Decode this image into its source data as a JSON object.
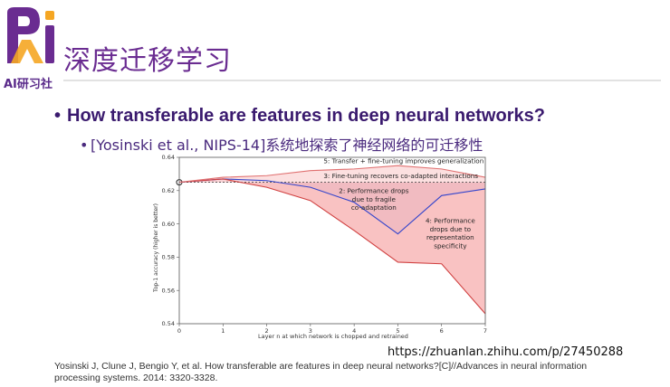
{
  "logo": {
    "text": "AI研习社",
    "accent": "#6a2c91",
    "highlight": "#f5a623"
  },
  "slide": {
    "title": "深度迁移学习",
    "bullet_main": "How transferable are features in deep neural networks?",
    "bullet_sub": "[Yosinski et al., NIPS-14]系统地探索了神经网络的可迁移性"
  },
  "chart_data": {
    "type": "line",
    "xlabel": "Layer n at which network is chopped and retrained",
    "ylabel": "Top-1 accuracy (higher is better)",
    "xlim": [
      0,
      7
    ],
    "ylim": [
      0.54,
      0.64
    ],
    "x_ticks": [
      "0",
      "1",
      "2",
      "3",
      "4",
      "5",
      "6",
      "7"
    ],
    "y_ticks": [
      "0.54",
      "0.56",
      "0.58",
      "0.60",
      "0.62",
      "0.64"
    ],
    "baseline": 0.625,
    "series": [
      {
        "values": [
          0.625,
          0.627,
          0.626,
          0.622,
          0.613,
          0.594,
          0.617,
          0.621
        ],
        "color": "#3344cc"
      },
      {
        "values": [
          0.625,
          0.627,
          0.622,
          0.614,
          0.596,
          0.577,
          0.576,
          0.546
        ],
        "color": "#d04040"
      },
      {
        "values": [
          0.625,
          0.628,
          0.629,
          0.632,
          0.633,
          0.635,
          0.633,
          0.628
        ],
        "color": "#e07070"
      }
    ],
    "annotations": [
      {
        "text": "5: Transfer + fine-tuning improves generalization",
        "x": 3.3,
        "y": 0.6365,
        "align": "start"
      },
      {
        "text": "3: Fine-tuning recovers co-adapted interactions",
        "x": 3.3,
        "y": 0.6275,
        "align": "start"
      },
      {
        "text": "2: Performance drops",
        "x": 4.45,
        "y": 0.6185,
        "align": "middle"
      },
      {
        "text": "due to fragile",
        "x": 4.45,
        "y": 0.6135,
        "align": "middle"
      },
      {
        "text": "co-adaptation",
        "x": 4.45,
        "y": 0.6085,
        "align": "middle"
      },
      {
        "text": "4: Performance",
        "x": 6.2,
        "y": 0.6005,
        "align": "middle"
      },
      {
        "text": "drops due to",
        "x": 6.2,
        "y": 0.5955,
        "align": "middle"
      },
      {
        "text": "representation",
        "x": 6.2,
        "y": 0.5905,
        "align": "middle"
      },
      {
        "text": "specificity",
        "x": 6.2,
        "y": 0.5855,
        "align": "middle"
      }
    ]
  },
  "footer": {
    "url": "https://zhuanlan.zhihu.com/p/27450288",
    "citation": "Yosinski J, Clune J, Bengio Y, et al. How transferable are features in deep neural networks?[C]//Advances in neural information processing systems. 2014: 3320-3328."
  }
}
